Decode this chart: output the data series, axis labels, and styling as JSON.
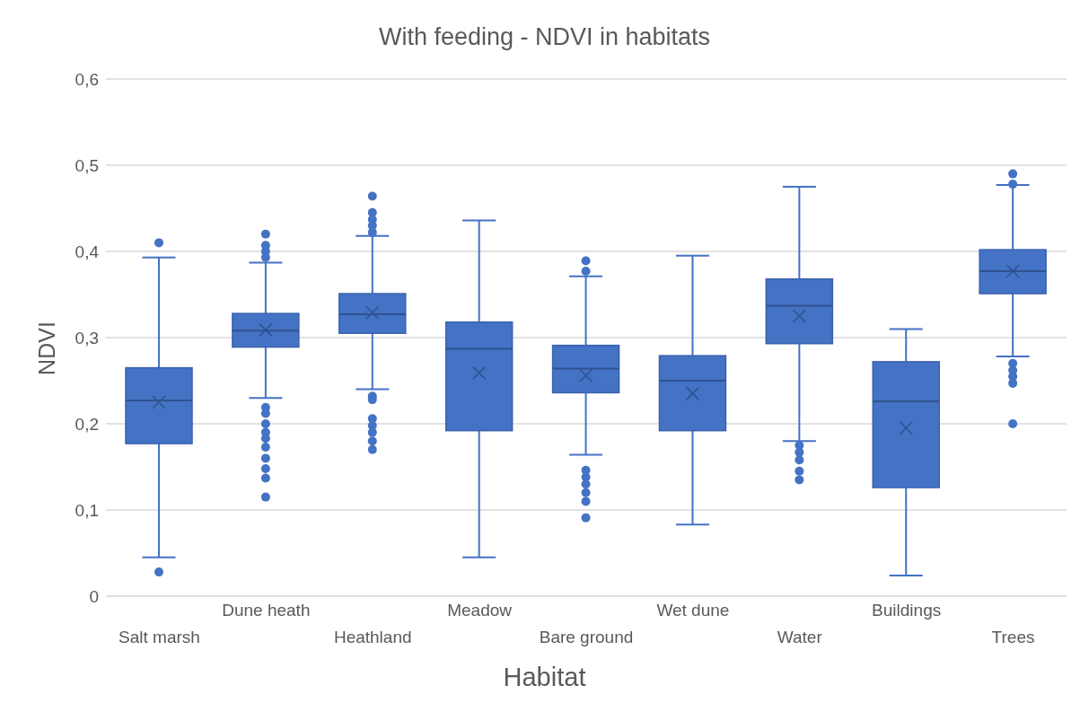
{
  "chart_data": {
    "type": "box",
    "title": "With feeding - NDVI in habitats",
    "xlabel": "Habitat",
    "ylabel": "NDVI",
    "categories": [
      "Salt marsh",
      "Dune heath",
      "Heathland",
      "Meadow",
      "Bare ground",
      "Wet dune",
      "Water",
      "Buildings",
      "Trees"
    ],
    "color": "#4472c4",
    "boxes": [
      {
        "low": 0.045,
        "q1": 0.177,
        "median": 0.227,
        "q3": 0.265,
        "high": 0.393,
        "mean": 0.225,
        "outliers": [
          0.41,
          0.028
        ]
      },
      {
        "low": 0.23,
        "q1": 0.289,
        "median": 0.308,
        "q3": 0.328,
        "high": 0.387,
        "mean": 0.309,
        "outliers": [
          0.42,
          0.407,
          0.4,
          0.393,
          0.219,
          0.212,
          0.2,
          0.19,
          0.183,
          0.173,
          0.16,
          0.148,
          0.137,
          0.115
        ]
      },
      {
        "low": 0.24,
        "q1": 0.305,
        "median": 0.327,
        "q3": 0.351,
        "high": 0.418,
        "mean": 0.329,
        "outliers": [
          0.464,
          0.445,
          0.437,
          0.43,
          0.422,
          0.232,
          0.228,
          0.206,
          0.198,
          0.19,
          0.18,
          0.17
        ]
      },
      {
        "low": 0.045,
        "q1": 0.192,
        "median": 0.287,
        "q3": 0.318,
        "high": 0.436,
        "mean": 0.259
      },
      {
        "low": 0.164,
        "q1": 0.236,
        "median": 0.264,
        "q3": 0.291,
        "high": 0.371,
        "mean": 0.256,
        "outliers": [
          0.389,
          0.377,
          0.146,
          0.138,
          0.13,
          0.12,
          0.11,
          0.091
        ]
      },
      {
        "low": 0.083,
        "q1": 0.192,
        "median": 0.25,
        "q3": 0.279,
        "high": 0.395,
        "mean": 0.235
      },
      {
        "low": 0.18,
        "q1": 0.293,
        "median": 0.337,
        "q3": 0.368,
        "high": 0.475,
        "mean": 0.325,
        "outliers": [
          0.175,
          0.167,
          0.158,
          0.145,
          0.135
        ]
      },
      {
        "low": 0.024,
        "q1": 0.126,
        "median": 0.226,
        "q3": 0.272,
        "high": 0.31,
        "mean": 0.195
      },
      {
        "low": 0.278,
        "q1": 0.351,
        "median": 0.377,
        "q3": 0.402,
        "high": 0.477,
        "mean": 0.377,
        "outliers": [
          0.49,
          0.478,
          0.27,
          0.262,
          0.255,
          0.247,
          0.2
        ]
      }
    ],
    "ylim": [
      0,
      0.6
    ],
    "yticks": [
      0,
      {
        "value": 0.1,
        "label": "0,1"
      },
      {
        "value": 0.2,
        "label": "0,2"
      },
      {
        "value": 0.3,
        "label": "0,3"
      },
      {
        "value": 0.4,
        "label": "0,4"
      },
      {
        "value": 0.5,
        "label": "0,5"
      },
      {
        "value": 0.6,
        "label": "0,6"
      }
    ],
    "grid": "y"
  }
}
